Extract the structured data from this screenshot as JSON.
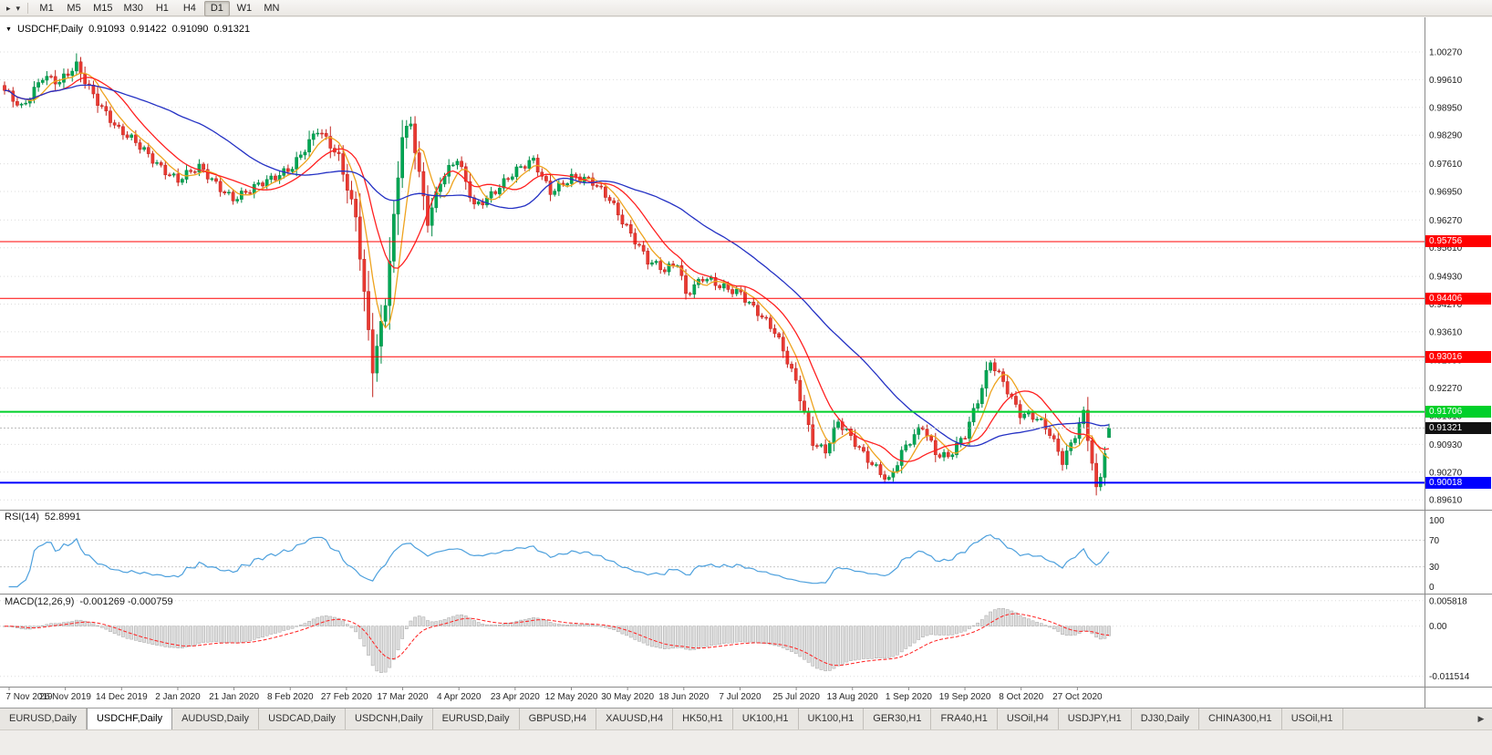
{
  "toolbar": {
    "timeframes": [
      {
        "label": "M1",
        "active": false
      },
      {
        "label": "M5",
        "active": false
      },
      {
        "label": "M15",
        "active": false
      },
      {
        "label": "M30",
        "active": false
      },
      {
        "label": "H1",
        "active": false
      },
      {
        "label": "H4",
        "active": false
      },
      {
        "label": "D1",
        "active": true
      },
      {
        "label": "W1",
        "active": false
      },
      {
        "label": "MN",
        "active": false
      }
    ]
  },
  "icons": {
    "toolbar_arrow": "▸",
    "toolbar_dropdown": "▾",
    "symbol_dropdown": "▼",
    "tab_scroll_right": "▶"
  },
  "chart_header": {
    "symbol_period": "USDCHF,Daily",
    "open": "0.91093",
    "high": "0.91422",
    "low": "0.91090",
    "close": "0.91321"
  },
  "rsi_panel": {
    "label": "RSI(14)",
    "value": "52.8991"
  },
  "macd_panel": {
    "label": "MACD(12,26,9)",
    "values": "-0.001269 -0.000759"
  },
  "tabs": {
    "scroll_right_icon": "▶",
    "items": [
      {
        "label": "EURUSD,Daily",
        "active": false
      },
      {
        "label": "USDCHF,Daily",
        "active": true
      },
      {
        "label": "AUDUSD,Daily",
        "active": false
      },
      {
        "label": "USDCAD,Daily",
        "active": false
      },
      {
        "label": "USDCNH,Daily",
        "active": false
      },
      {
        "label": "EURUSD,Daily",
        "active": false
      },
      {
        "label": "GBPUSD,H4",
        "active": false
      },
      {
        "label": "XAUUSD,H4",
        "active": false
      },
      {
        "label": "HK50,H1",
        "active": false
      },
      {
        "label": "UK100,H1",
        "active": false
      },
      {
        "label": "UK100,H1",
        "active": false
      },
      {
        "label": "GER30,H1",
        "active": false
      },
      {
        "label": "FRA40,H1",
        "active": false
      },
      {
        "label": "USOil,H4",
        "active": false
      },
      {
        "label": "USDJPY,H1",
        "active": false
      },
      {
        "label": "DJ30,Daily",
        "active": false
      },
      {
        "label": "CHINA300,H1",
        "active": false
      },
      {
        "label": "USOil,H1",
        "active": false
      }
    ]
  },
  "chart_data": {
    "type": "candlestick",
    "title": "USDCHF,Daily",
    "bars": 262,
    "y_range": {
      "max": 1.0027,
      "min": 0.8961
    },
    "y_tick_labels": [
      "1.00270",
      "0.99610",
      "0.98950",
      "0.98290",
      "0.97610",
      "0.96950",
      "0.96270",
      "0.95610",
      "0.94930",
      "0.94270",
      "0.93610",
      "0.92930",
      "0.92270",
      "0.91610",
      "0.90930",
      "0.90270",
      "0.89610"
    ],
    "x_tick_labels": [
      "7 Nov 2019",
      "26 Nov 2019",
      "14 Dec 2019",
      "2 Jan 2020",
      "21 Jan 2020",
      "8 Feb 2020",
      "27 Feb 2020",
      "17 Mar 2020",
      "4 Apr 2020",
      "23 Apr 2020",
      "12 May 2020",
      "30 May 2020",
      "18 Jun 2020",
      "7 Jul 2020",
      "25 Jul 2020",
      "13 Aug 2020",
      "1 Sep 2020",
      "19 Sep 2020",
      "8 Oct 2020",
      "27 Oct 2020"
    ],
    "close_anchors": [
      [
        0,
        0.993
      ],
      [
        4,
        0.9897
      ],
      [
        9,
        0.9972
      ],
      [
        13,
        0.995
      ],
      [
        17,
        0.9992
      ],
      [
        21,
        0.993
      ],
      [
        27,
        0.9838
      ],
      [
        33,
        0.9792
      ],
      [
        41,
        0.9722
      ],
      [
        46,
        0.9748
      ],
      [
        54,
        0.9682
      ],
      [
        58,
        0.9695
      ],
      [
        63,
        0.9722
      ],
      [
        68,
        0.976
      ],
      [
        74,
        0.9838
      ],
      [
        79,
        0.9775
      ],
      [
        83,
        0.964
      ],
      [
        87,
        0.9272
      ],
      [
        90,
        0.9425
      ],
      [
        94,
        0.9828
      ],
      [
        96,
        0.9858
      ],
      [
        100,
        0.9628
      ],
      [
        103,
        0.9718
      ],
      [
        107,
        0.9768
      ],
      [
        111,
        0.9662
      ],
      [
        115,
        0.9692
      ],
      [
        121,
        0.974
      ],
      [
        125,
        0.9768
      ],
      [
        129,
        0.97
      ],
      [
        134,
        0.9726
      ],
      [
        139,
        0.9714
      ],
      [
        143,
        0.9682
      ],
      [
        147,
        0.9612
      ],
      [
        152,
        0.9524
      ],
      [
        156,
        0.9508
      ],
      [
        159,
        0.9532
      ],
      [
        161,
        0.9455
      ],
      [
        165,
        0.9487
      ],
      [
        169,
        0.9465
      ],
      [
        174,
        0.9458
      ],
      [
        178,
        0.941
      ],
      [
        182,
        0.9356
      ],
      [
        187,
        0.9243
      ],
      [
        191,
        0.9104
      ],
      [
        194,
        0.9078
      ],
      [
        197,
        0.9142
      ],
      [
        200,
        0.9106
      ],
      [
        203,
        0.9072
      ],
      [
        206,
        0.9042
      ],
      [
        209,
        0.9008
      ],
      [
        212,
        0.9068
      ],
      [
        214,
        0.9096
      ],
      [
        217,
        0.9136
      ],
      [
        220,
        0.9078
      ],
      [
        223,
        0.9068
      ],
      [
        227,
        0.9112
      ],
      [
        230,
        0.9192
      ],
      [
        233,
        0.9292
      ],
      [
        236,
        0.9248
      ],
      [
        240,
        0.9166
      ],
      [
        244,
        0.915
      ],
      [
        247,
        0.9118
      ],
      [
        250,
        0.9058
      ],
      [
        252,
        0.9098
      ],
      [
        255,
        0.9168
      ],
      [
        257,
        0.9048
      ],
      [
        258,
        0.8978
      ],
      [
        259,
        0.9012
      ],
      [
        260,
        0.9072
      ],
      [
        261,
        0.91321
      ]
    ],
    "last_bar": {
      "open": 0.91093,
      "high": 0.91422,
      "low": 0.9109,
      "close": 0.91321
    },
    "levels": [
      {
        "price": 0.95756,
        "label": "0.95756",
        "color": "#ff0000",
        "thickness": 1
      },
      {
        "price": 0.94406,
        "label": "0.94406",
        "color": "#ff0000",
        "thickness": 1
      },
      {
        "price": 0.93016,
        "label": "0.93016",
        "color": "#ff0000",
        "thickness": 1
      },
      {
        "price": 0.91706,
        "label": "0.91706",
        "color": "#00d02a",
        "thickness": 2
      },
      {
        "price": 0.90018,
        "label": "0.90018",
        "color": "#0000ff",
        "thickness": 2
      }
    ],
    "current_price": {
      "price": 0.91321,
      "label": "0.91321",
      "color": "#111111"
    },
    "moving_averages": [
      {
        "period": 6,
        "color": "#eea31e"
      },
      {
        "period": 13,
        "color": "#ff2020"
      },
      {
        "period": 40,
        "color": "#2431c4"
      }
    ],
    "rsi": {
      "period": 14,
      "last": "52.8991",
      "color": "#4da0dd",
      "ticks": [
        {
          "label": "100",
          "value": 100
        },
        {
          "label": "70",
          "value": 70
        },
        {
          "label": "30",
          "value": 30
        },
        {
          "label": "0",
          "value": 0
        }
      ],
      "dashed_levels": [
        70,
        30
      ]
    },
    "macd": {
      "fast": 12,
      "slow": 26,
      "signal": 9,
      "values_text": "-0.001269 -0.000759",
      "ticks": [
        {
          "label": "0.005818",
          "value": 0.005818
        },
        {
          "label": "0.00",
          "value": 0
        },
        {
          "label": "-0.011514",
          "value": -0.011514
        }
      ],
      "hist_fill": "#dedede",
      "hist_stroke": "#a6a6a6",
      "signal_color": "#ff2020"
    },
    "colors": {
      "up": "#00a754",
      "up_dark": "#028a45",
      "down": "#ea3a32",
      "down_dark": "#c2241e",
      "grid": "#dcdcdc"
    }
  }
}
